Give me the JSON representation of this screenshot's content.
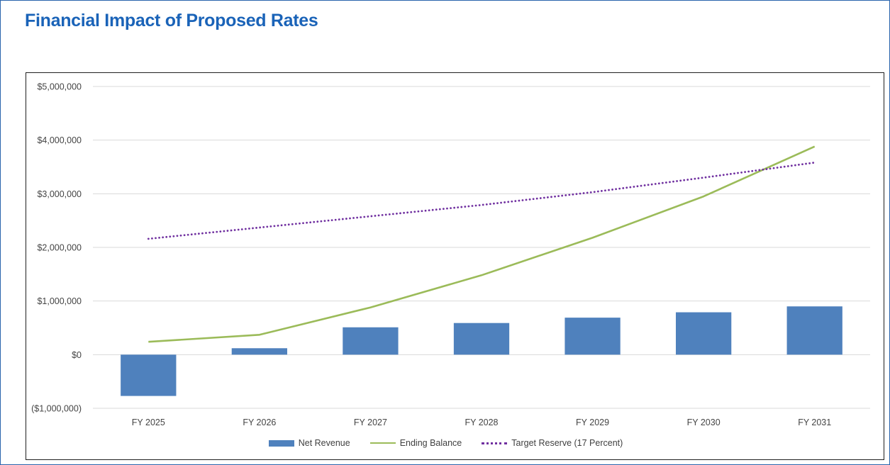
{
  "title": "Financial Impact of Proposed Rates",
  "chart_data": {
    "type": "bar",
    "categories": [
      "FY 2025",
      "FY 2026",
      "FY 2027",
      "FY 2028",
      "FY 2029",
      "FY 2030",
      "FY 2031"
    ],
    "series": [
      {
        "name": "Net Revenue",
        "type": "bar",
        "color": "#4f81bd",
        "values": [
          -770000,
          120000,
          510000,
          590000,
          690000,
          790000,
          900000
        ]
      },
      {
        "name": "Ending Balance",
        "type": "line",
        "color": "#9bbb59",
        "values": [
          240000,
          370000,
          880000,
          1480000,
          2180000,
          2950000,
          3880000
        ]
      },
      {
        "name": "Target Reserve (17 Percent)",
        "type": "line-dotted",
        "color": "#7030a0",
        "values": [
          2160000,
          2370000,
          2580000,
          2790000,
          3030000,
          3300000,
          3580000
        ]
      }
    ],
    "ylim": [
      -1000000,
      5000000
    ],
    "yticks": [
      -1000000,
      0,
      1000000,
      2000000,
      3000000,
      4000000,
      5000000
    ],
    "ytick_labels": [
      "($1,000,000)",
      "$0",
      "$1,000,000",
      "$2,000,000",
      "$3,000,000",
      "$4,000,000",
      "$5,000,000"
    ],
    "xlabel": "",
    "ylabel": "",
    "grid": true,
    "legend_position": "bottom"
  }
}
